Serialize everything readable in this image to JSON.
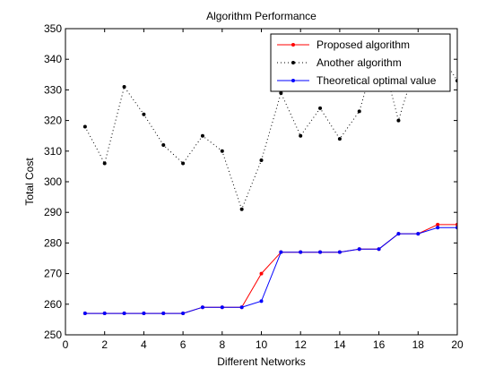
{
  "chart_data": {
    "type": "line",
    "title": "Algorithm Performance",
    "xlabel": "Different Networks",
    "ylabel": "Total Cost",
    "xlim": [
      0,
      20
    ],
    "ylim": [
      250,
      350
    ],
    "xticks": [
      0,
      2,
      4,
      6,
      8,
      10,
      12,
      14,
      16,
      18,
      20
    ],
    "yticks": [
      250,
      260,
      270,
      280,
      290,
      300,
      310,
      320,
      330,
      340,
      350
    ],
    "grid": false,
    "legend_position": "top-right",
    "x": [
      1,
      2,
      3,
      4,
      5,
      6,
      7,
      8,
      9,
      10,
      11,
      12,
      13,
      14,
      15,
      16,
      17,
      18,
      19,
      20
    ],
    "series": [
      {
        "name": "Proposed algorithm",
        "color": "#ff0000",
        "line_style": "solid",
        "marker": "dot",
        "values": [
          257,
          257,
          257,
          257,
          257,
          257,
          259,
          259,
          259,
          270,
          277,
          277,
          277,
          277,
          278,
          278,
          283,
          283,
          286,
          286
        ]
      },
      {
        "name": "Another algorithm",
        "color": "#000000",
        "line_style": "dotted",
        "marker": "dot",
        "values": [
          318,
          306,
          331,
          322,
          312,
          306,
          315,
          310,
          291,
          307,
          329,
          315,
          324,
          314,
          323,
          345,
          320,
          341,
          343,
          333
        ]
      },
      {
        "name": "Theoretical optimal value",
        "color": "#0000ff",
        "line_style": "solid",
        "marker": "dot",
        "values": [
          257,
          257,
          257,
          257,
          257,
          257,
          259,
          259,
          259,
          261,
          277,
          277,
          277,
          277,
          278,
          278,
          283,
          283,
          285,
          285
        ]
      }
    ]
  }
}
